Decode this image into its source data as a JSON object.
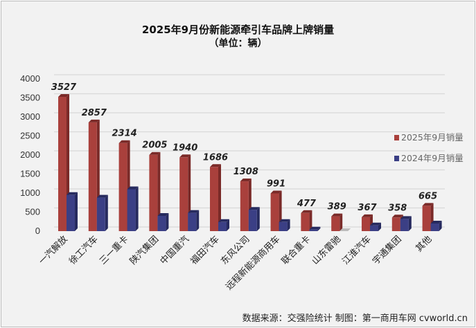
{
  "chart_data": {
    "type": "bar",
    "title": "2025年9月份新能源牵引车品牌上牌销量",
    "subtitle": "（单位：辆）",
    "categories": [
      "一汽解放",
      "徐工汽车",
      "三一重卡",
      "陕汽集团",
      "中国重汽",
      "福田汽车",
      "东风公司",
      "远程新能源商用车",
      "联合重卡",
      "山东雷驰",
      "江淮汽车",
      "宇通集团",
      "其他"
    ],
    "series": [
      {
        "name": "2025年9月销量",
        "color": "#a9403c",
        "values": [
          3527,
          2857,
          2314,
          2005,
          1940,
          1686,
          1308,
          991,
          477,
          389,
          367,
          358,
          665
        ]
      },
      {
        "name": "2024年9月销量",
        "color": "#3b3f85",
        "values": [
          950,
          880,
          1100,
          400,
          480,
          240,
          560,
          240,
          40,
          0,
          150,
          320,
          200
        ]
      }
    ],
    "yticks": [
      0,
      500,
      1000,
      1500,
      2000,
      2500,
      3000,
      3500,
      4000
    ],
    "ylim": [
      0,
      4000
    ],
    "grid": true,
    "legend": "right"
  },
  "footer": "数据来源：交强险统计  制图：第一商用车网 cvworld.cn"
}
